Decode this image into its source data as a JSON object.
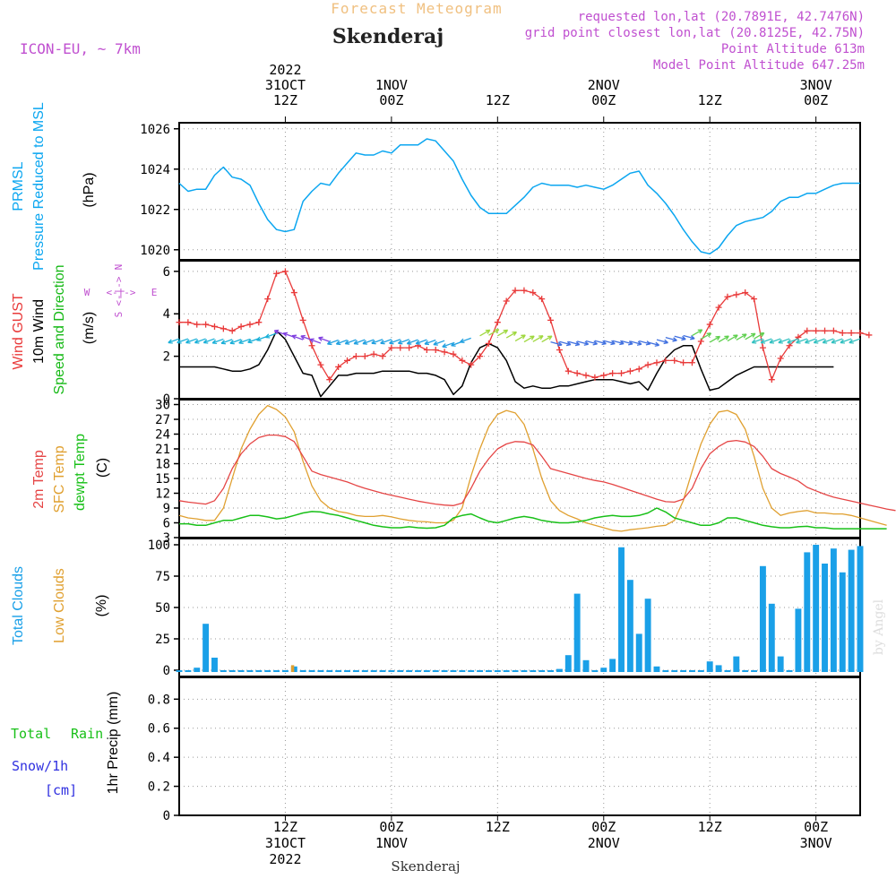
{
  "header": {
    "title_small": "Forecast Meteogram",
    "station": "Skenderaj",
    "model": "ICON-EU, ~ 7km",
    "requested": "requested lon,lat (20.7891E, 42.7476N)",
    "gridpoint": "grid point closest lon,lat (20.8125E, 42.75N)",
    "point_alt": "Point Altitude 613m",
    "model_alt": "Model Point Altitude 647.25m",
    "footer_station": "Skenderaj",
    "credit": "by Angel"
  },
  "time_axis": {
    "year": "2022",
    "ticks": [
      {
        "hour": 12,
        "top": [
          "2022",
          "31OCT",
          "12Z"
        ],
        "bottom": [
          "12Z",
          "31OCT",
          "2022"
        ]
      },
      {
        "hour": 24,
        "top": [
          "1NOV",
          "00Z"
        ],
        "bottom": [
          "00Z",
          "1NOV"
        ]
      },
      {
        "hour": 36,
        "top": [
          "12Z"
        ],
        "bottom": [
          "12Z"
        ]
      },
      {
        "hour": 48,
        "top": [
          "2NOV",
          "00Z"
        ],
        "bottom": [
          "00Z",
          "2NOV"
        ]
      },
      {
        "hour": 60,
        "top": [
          "12Z"
        ],
        "bottom": [
          "12Z"
        ]
      },
      {
        "hour": 72,
        "top": [
          "3NOV",
          "00Z"
        ],
        "bottom": [
          "00Z",
          "3NOV"
        ]
      }
    ]
  },
  "colors": {
    "prmsl": "#0ba6f0",
    "gust": "#e93a3a",
    "wind": "#000000",
    "wind_label_green": "#17b917",
    "temp": "#e54545",
    "sfc": "#e0a030",
    "dew": "#18c018",
    "clouds_total": "#1aa0e8",
    "clouds_low": "#e0a030",
    "rain": "#18c018",
    "snow": "#3030e0",
    "purple": "#c050d0",
    "title_orange": "#f0c080"
  },
  "panels": {
    "pressure": {
      "labels": [
        "PRMSL",
        "Pressure Reduced to MSL",
        "(hPa)"
      ],
      "ticks": [
        "1020",
        "1022",
        "1024",
        "1026"
      ]
    },
    "wind": {
      "labels": [
        "Wind GUST",
        "10m Wind",
        "Speed and Direction",
        "(m/s)"
      ],
      "ticks": [
        "0",
        "2",
        "4",
        "6"
      ],
      "compass": {
        "n": "N",
        "s": "S",
        "e": "E",
        "w": "W"
      }
    },
    "temp": {
      "labels": [
        "2m Temp",
        "SFC Temp",
        "dewpt Temp",
        "(C)"
      ],
      "ticks": [
        "3",
        "6",
        "9",
        "12",
        "15",
        "18",
        "21",
        "24",
        "27",
        "30"
      ]
    },
    "clouds": {
      "labels": [
        "Total Clouds",
        "Low Clouds",
        "(%)"
      ],
      "ticks": [
        "0",
        "25",
        "50",
        "75",
        "100"
      ]
    },
    "precip": {
      "labels": [
        "Total",
        "Rain",
        "Snow/1h",
        "[cm]",
        "1hr Precip (mm)"
      ],
      "ticks": [
        "0",
        "0.2",
        "0.4",
        "0.6",
        "0.8"
      ]
    }
  },
  "chart_data": [
    {
      "type": "line",
      "title": "PRMSL Pressure Reduced to MSL",
      "ylabel": "(hPa)",
      "ylim": [
        1019.5,
        1026.3
      ],
      "x_hours_start": 0,
      "x_hours_step": 1,
      "series": [
        {
          "name": "PRMSL",
          "values": [
            1023.3,
            1022.9,
            1023.0,
            1023.0,
            1023.7,
            1024.1,
            1023.6,
            1023.5,
            1023.2,
            1022.3,
            1021.5,
            1021.0,
            1020.9,
            1021.0,
            1022.4,
            1022.9,
            1023.3,
            1023.2,
            1023.8,
            1024.3,
            1024.8,
            1024.7,
            1024.7,
            1024.9,
            1024.8,
            1025.2,
            1025.2,
            1025.2,
            1025.5,
            1025.4,
            1024.9,
            1024.4,
            1023.5,
            1022.7,
            1022.1,
            1021.8,
            1021.8,
            1021.8,
            1022.2,
            1022.6,
            1023.1,
            1023.3,
            1023.2,
            1023.2,
            1023.2,
            1023.1,
            1023.2,
            1023.1,
            1023.0,
            1023.2,
            1023.5,
            1023.8,
            1023.9,
            1023.2,
            1022.8,
            1022.3,
            1021.7,
            1021.0,
            1020.4,
            1019.9,
            1019.8,
            1020.1,
            1020.7,
            1021.2,
            1021.4,
            1021.5,
            1021.6,
            1021.9,
            1022.4,
            1022.6,
            1022.6,
            1022.8,
            1022.8,
            1023.0,
            1023.2,
            1023.3,
            1023.3,
            1023.3
          ]
        }
      ]
    },
    {
      "type": "line",
      "title": "Wind GUST / 10m Wind Speed and Direction",
      "ylabel": "(m/s)",
      "ylim": [
        0,
        6.5
      ],
      "x_hours_start": 0,
      "x_hours_step": 1,
      "series": [
        {
          "name": "Wind GUST",
          "values": [
            3.6,
            3.6,
            3.5,
            3.5,
            3.4,
            3.3,
            3.2,
            3.4,
            3.5,
            3.6,
            4.7,
            5.9,
            6.0,
            5.0,
            3.7,
            2.5,
            1.6,
            0.9,
            1.5,
            1.8,
            2.0,
            2.0,
            2.1,
            2.0,
            2.4,
            2.4,
            2.4,
            2.5,
            2.3,
            2.3,
            2.2,
            2.1,
            1.8,
            1.6,
            2.0,
            2.6,
            3.6,
            4.6,
            5.1,
            5.1,
            5.0,
            4.7,
            3.7,
            2.3,
            1.3,
            1.2,
            1.1,
            1.0,
            1.1,
            1.2,
            1.2,
            1.3,
            1.4,
            1.6,
            1.7,
            1.8,
            1.8,
            1.7,
            1.7,
            2.7,
            3.5,
            4.3,
            4.8,
            4.9,
            5.0,
            4.7,
            2.4,
            0.9,
            1.9,
            2.5,
            2.9,
            3.2,
            3.2,
            3.2,
            3.2,
            3.1,
            3.1,
            3.1,
            3.0
          ]
        },
        {
          "name": "10m Wind",
          "values": [
            1.5,
            1.5,
            1.5,
            1.5,
            1.5,
            1.4,
            1.3,
            1.3,
            1.4,
            1.6,
            2.3,
            3.2,
            2.8,
            2.0,
            1.2,
            1.1,
            0.1,
            0.6,
            1.1,
            1.1,
            1.2,
            1.2,
            1.2,
            1.3,
            1.3,
            1.3,
            1.3,
            1.2,
            1.2,
            1.1,
            0.9,
            0.2,
            0.6,
            1.7,
            2.4,
            2.6,
            2.4,
            1.8,
            0.8,
            0.5,
            0.6,
            0.5,
            0.5,
            0.6,
            0.6,
            0.7,
            0.8,
            0.9,
            0.9,
            0.9,
            0.8,
            0.7,
            0.8,
            0.4,
            1.2,
            1.9,
            2.3,
            2.5,
            2.5,
            1.4,
            0.4,
            0.5,
            0.8,
            1.1,
            1.3,
            1.5,
            1.5,
            1.5,
            1.5,
            1.5,
            1.5,
            1.5,
            1.5,
            1.5,
            1.5
          ]
        }
      ]
    },
    {
      "type": "line",
      "title": "2m Temp / SFC Temp / dewpt Temp",
      "ylabel": "(C)",
      "ylim": [
        3,
        31
      ],
      "x_hours_start": 0,
      "x_hours_step": 1,
      "series": [
        {
          "name": "2m Temp",
          "values": [
            10.5,
            10.2,
            10.0,
            9.8,
            10.5,
            13.0,
            17.0,
            20.0,
            22.0,
            23.3,
            23.8,
            23.8,
            23.5,
            22.5,
            19.5,
            16.5,
            15.8,
            15.3,
            14.8,
            14.3,
            13.6,
            13.0,
            12.5,
            12.0,
            11.6,
            11.2,
            10.8,
            10.4,
            10.1,
            9.8,
            9.6,
            9.5,
            10.0,
            13.0,
            16.5,
            19.0,
            21.0,
            22.0,
            22.5,
            22.4,
            21.8,
            19.5,
            17.0,
            16.5,
            16.0,
            15.5,
            15.0,
            14.6,
            14.3,
            13.8,
            13.2,
            12.6,
            12.0,
            11.4,
            10.8,
            10.3,
            10.2,
            10.8,
            13.0,
            17.0,
            20.0,
            21.5,
            22.5,
            22.7,
            22.4,
            21.5,
            19.5,
            17.0,
            16.0,
            15.3,
            14.5,
            13.2,
            12.5,
            11.8,
            11.2,
            10.8,
            10.4,
            10.0,
            9.6,
            9.2,
            8.8,
            8.5
          ]
        },
        {
          "name": "SFC Temp",
          "values": [
            7.5,
            7.0,
            6.8,
            6.5,
            6.5,
            9.0,
            15.0,
            21.0,
            25.0,
            28.0,
            29.8,
            29.0,
            27.5,
            24.5,
            18.5,
            13.5,
            10.5,
            9.0,
            8.3,
            8.0,
            7.5,
            7.3,
            7.3,
            7.5,
            7.2,
            6.8,
            6.5,
            6.3,
            6.2,
            6.0,
            6.0,
            6.5,
            9.0,
            15.5,
            21.0,
            25.5,
            28.0,
            28.8,
            28.3,
            26.0,
            21.0,
            15.0,
            10.5,
            8.5,
            7.5,
            6.8,
            6.0,
            5.5,
            5.0,
            4.5,
            4.3,
            4.6,
            4.8,
            5.0,
            5.3,
            5.5,
            6.5,
            10.5,
            16.5,
            22.0,
            26.0,
            28.5,
            28.8,
            28.0,
            25.0,
            19.5,
            13.0,
            9.0,
            7.5,
            8.0,
            8.3,
            8.5,
            8.0,
            8.0,
            7.8,
            7.8,
            7.5,
            7.0,
            6.5,
            6.0,
            5.5
          ]
        },
        {
          "name": "dewpt Temp",
          "values": [
            5.8,
            5.8,
            5.5,
            5.5,
            6.0,
            6.5,
            6.5,
            7.0,
            7.5,
            7.5,
            7.2,
            6.8,
            7.0,
            7.5,
            8.0,
            8.3,
            8.2,
            7.8,
            7.5,
            7.0,
            6.5,
            6.0,
            5.5,
            5.2,
            5.0,
            5.0,
            5.2,
            5.0,
            4.9,
            5.0,
            5.5,
            7.0,
            7.5,
            7.8,
            7.0,
            6.3,
            6.0,
            6.5,
            7.0,
            7.3,
            7.0,
            6.5,
            6.2,
            6.0,
            6.0,
            6.2,
            6.5,
            7.0,
            7.3,
            7.5,
            7.3,
            7.3,
            7.5,
            8.0,
            9.0,
            8.2,
            7.0,
            6.5,
            6.0,
            5.5,
            5.5,
            6.0,
            7.0,
            7.0,
            6.5,
            6.0,
            5.5,
            5.2,
            5.0,
            5.0,
            5.2,
            5.3,
            5.0,
            5.0,
            4.8,
            4.8,
            4.8,
            4.8,
            4.8,
            4.8,
            4.8
          ]
        }
      ]
    },
    {
      "type": "bar",
      "title": "Total Clouds / Low Clouds",
      "ylabel": "(%)",
      "ylim": [
        0,
        105
      ],
      "x_hours_start": 0,
      "x_hours_step": 1,
      "series": [
        {
          "name": "Total Clouds",
          "values": [
            0,
            0,
            2,
            37,
            10,
            0,
            0,
            0,
            0,
            0,
            0,
            0,
            0,
            3,
            0,
            0,
            0,
            0,
            0,
            0,
            0,
            0,
            0,
            0,
            0,
            0,
            0,
            0,
            0,
            0,
            0,
            0,
            0,
            0,
            0,
            0,
            0,
            0,
            0,
            0,
            0,
            0,
            0,
            1,
            12,
            61,
            8,
            0,
            2,
            9,
            98,
            72,
            29,
            57,
            3,
            0,
            0,
            0,
            0,
            0,
            7,
            4,
            0,
            11,
            0,
            0,
            83,
            53,
            11,
            0,
            49,
            94,
            100,
            85,
            97,
            78,
            96,
            99
          ]
        },
        {
          "name": "Low Clouds",
          "values": [
            0,
            0,
            0,
            0,
            0,
            0,
            0,
            0,
            0,
            0,
            0,
            0,
            0,
            4,
            0,
            0,
            0,
            0,
            0,
            0,
            0,
            0,
            0,
            0,
            0,
            0,
            0,
            0,
            0,
            0,
            0,
            0,
            0,
            0,
            0,
            0,
            0,
            0,
            0,
            0,
            0,
            0,
            0,
            0,
            0,
            0,
            0,
            0,
            0,
            0,
            0,
            0,
            0,
            0,
            0,
            0,
            0,
            0,
            0,
            0,
            0,
            0,
            0,
            0,
            0,
            0,
            0,
            0,
            0,
            0,
            0,
            0,
            0,
            0,
            0,
            0,
            0,
            0
          ]
        }
      ]
    },
    {
      "type": "bar",
      "title": "1hr Precip",
      "ylabel": "1hr Precip (mm)",
      "ylim": [
        0,
        0.95
      ],
      "series": [
        {
          "name": "Total Rain",
          "values": []
        },
        {
          "name": "Snow/1h",
          "values": []
        }
      ]
    }
  ]
}
